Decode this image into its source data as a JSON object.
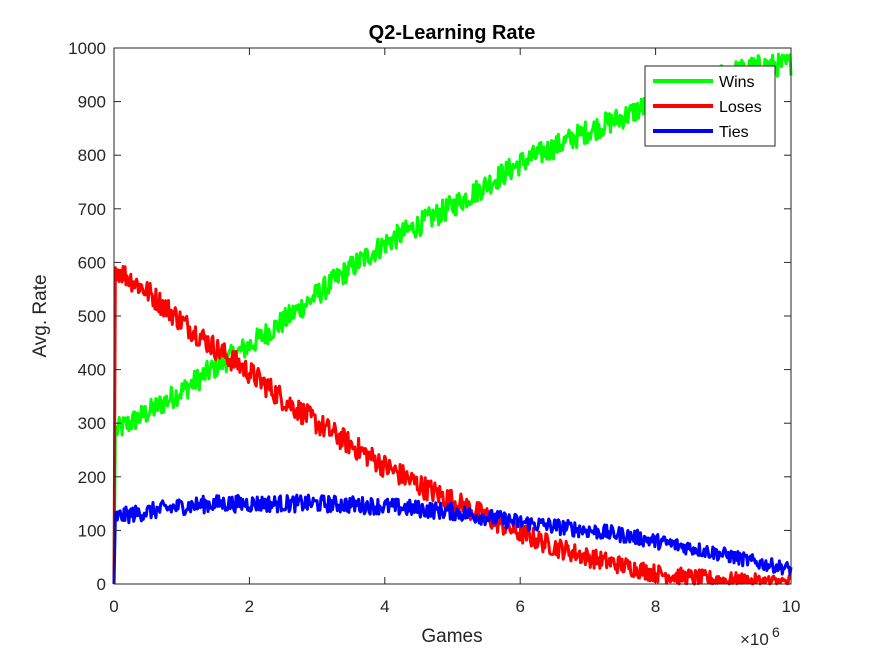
{
  "chart_data": {
    "type": "line",
    "title": "Q2-Learning Rate",
    "xlabel": "Games",
    "ylabel": "Avg. Rate",
    "x_exponent": {
      "base": "×10",
      "power": "6"
    },
    "xlim": [
      0,
      10
    ],
    "ylim": [
      0,
      1000
    ],
    "xticks": [
      "0",
      "2",
      "4",
      "6",
      "8",
      "10"
    ],
    "yticks": [
      "0",
      "100",
      "200",
      "300",
      "400",
      "500",
      "600",
      "700",
      "800",
      "900",
      "1000"
    ],
    "xtick_values": [
      0,
      2,
      4,
      6,
      8,
      10
    ],
    "ytick_values": [
      0,
      100,
      200,
      300,
      400,
      500,
      600,
      700,
      800,
      900,
      1000
    ],
    "grid": false,
    "legend_position": "top-right",
    "noisy_lines": true,
    "series": [
      {
        "name": "Wins",
        "color": "#00ff00",
        "noise": 22,
        "x": [
          0,
          0.02,
          0.5,
          1,
          1.5,
          2,
          2.5,
          3,
          3.5,
          4,
          4.5,
          5,
          5.5,
          6,
          6.5,
          7,
          7.5,
          8,
          8.5,
          9,
          9.5,
          10
        ],
        "y": [
          0,
          285,
          320,
          360,
          405,
          445,
          490,
          540,
          590,
          635,
          670,
          705,
          745,
          785,
          815,
          845,
          870,
          900,
          925,
          950,
          965,
          970
        ]
      },
      {
        "name": "Loses",
        "color": "#ff0000",
        "noise": 22,
        "x": [
          0,
          0.02,
          0.5,
          1,
          1.5,
          2,
          2.5,
          3,
          3.5,
          4,
          4.5,
          5,
          5.5,
          6,
          6.5,
          7,
          7.5,
          8,
          8.5,
          9,
          9.5,
          10
        ],
        "y": [
          0,
          590,
          545,
          490,
          440,
          395,
          345,
          300,
          260,
          220,
          185,
          155,
          125,
          95,
          70,
          50,
          35,
          20,
          12,
          7,
          3,
          2
        ]
      },
      {
        "name": "Ties",
        "color": "#0000ff",
        "noise": 16,
        "x": [
          0,
          0.02,
          0.5,
          1,
          1.5,
          2,
          2.5,
          3,
          3.5,
          4,
          4.5,
          5,
          5.5,
          6,
          6.5,
          7,
          7.5,
          8,
          8.5,
          9,
          9.5,
          10
        ],
        "y": [
          0,
          125,
          135,
          145,
          150,
          150,
          150,
          150,
          148,
          145,
          140,
          135,
          125,
          115,
          108,
          100,
          92,
          80,
          68,
          55,
          40,
          28
        ]
      }
    ]
  }
}
